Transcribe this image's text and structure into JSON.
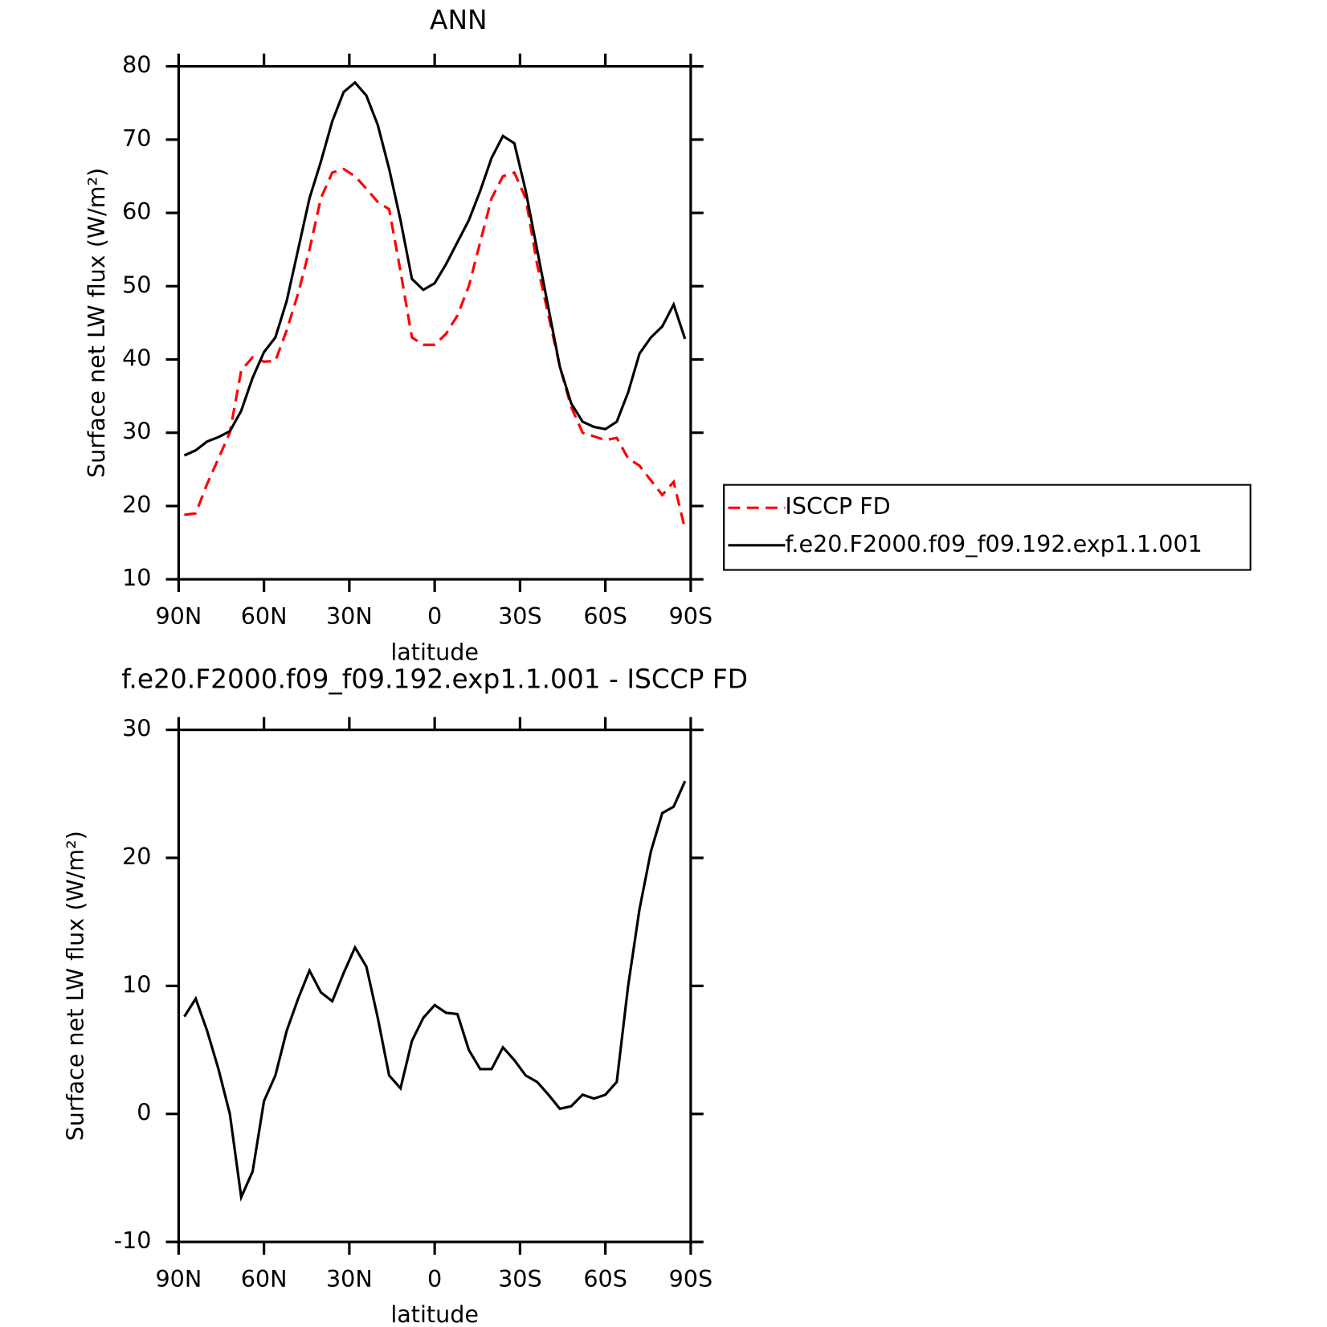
{
  "chart_data": [
    {
      "type": "line",
      "title": "ANN",
      "xlabel": "latitude",
      "ylabel": "Surface net LW flux (W/m²)",
      "x": [
        88,
        84,
        80,
        76,
        72,
        68,
        64,
        60,
        56,
        52,
        48,
        44,
        40,
        36,
        32,
        28,
        24,
        20,
        16,
        12,
        8,
        4,
        0,
        -4,
        -8,
        -12,
        -16,
        -20,
        -24,
        -28,
        -32,
        -36,
        -40,
        -44,
        -48,
        -52,
        -56,
        -60,
        -64,
        -68,
        -72,
        -76,
        -80,
        -84,
        -88
      ],
      "series": [
        {
          "name": "ISCCP FD",
          "color": "#ff0000",
          "style": "dashed",
          "values": [
            18.8,
            19,
            23,
            26.5,
            30,
            38.5,
            40.3,
            39.7,
            39.8,
            44,
            49,
            55,
            62,
            65.5,
            66,
            65,
            63.3,
            61.5,
            60.5,
            52,
            43,
            42,
            42,
            43.5,
            46,
            50,
            56,
            62,
            65,
            65.5,
            62,
            53,
            46,
            39,
            33.5,
            30,
            29.5,
            29,
            29.3,
            26.5,
            25.5,
            23.5,
            21.5,
            23.3,
            16.8
          ]
        },
        {
          "name": "f.e20.F2000.f09_f09.192.exp1.1.001",
          "color": "#000000",
          "style": "solid",
          "values": [
            26.9,
            27.6,
            28.8,
            29.4,
            30.2,
            33,
            37.5,
            41,
            43,
            48,
            55,
            62,
            67,
            72.5,
            76.5,
            77.8,
            76,
            72,
            66,
            59,
            51,
            49.5,
            50.4,
            53,
            56,
            59,
            63,
            67.5,
            70.5,
            69.5,
            63,
            55,
            47,
            39,
            34,
            31.5,
            30.8,
            30.5,
            31.5,
            35.5,
            40.8,
            43,
            44.5,
            47.5,
            42.8
          ]
        }
      ],
      "xlim": [
        90,
        -90
      ],
      "xticks": [
        {
          "value": 90,
          "label": "90N"
        },
        {
          "value": 60,
          "label": "60N"
        },
        {
          "value": 30,
          "label": "30N"
        },
        0,
        {
          "value": -30,
          "label": "30S"
        },
        {
          "value": -60,
          "label": "60S"
        },
        {
          "value": -90,
          "label": "90S"
        }
      ],
      "ylim": [
        10,
        80
      ],
      "yticks": [
        10,
        20,
        30,
        40,
        50,
        60,
        70,
        80
      ],
      "legend": "right"
    },
    {
      "type": "line",
      "title": "f.e20.F2000.f09_f09.192.exp1.1.001 - ISCCP FD",
      "xlabel": "latitude",
      "ylabel": "Surface net LW flux (W/m²)",
      "x": [
        88,
        84,
        80,
        76,
        72,
        68,
        64,
        60,
        56,
        52,
        48,
        44,
        40,
        36,
        32,
        28,
        24,
        20,
        16,
        12,
        8,
        4,
        0,
        -4,
        -8,
        -12,
        -16,
        -20,
        -24,
        -28,
        -32,
        -36,
        -40,
        -44,
        -48,
        -52,
        -56,
        -60,
        -64,
        -68,
        -72,
        -76,
        -80,
        -84,
        -88
      ],
      "series": [
        {
          "color": "#000000",
          "style": "solid",
          "values": [
            7.6,
            9,
            6.5,
            3.5,
            0,
            -6.5,
            -4.5,
            1,
            3,
            6.5,
            9,
            11.2,
            9.5,
            8.8,
            11,
            13,
            11.5,
            7.5,
            3,
            2,
            5.7,
            7.5,
            8.5,
            7.9,
            7.8,
            5,
            3.5,
            3.5,
            5.2,
            4.2,
            3,
            2.5,
            1.5,
            0.4,
            0.6,
            1.5,
            1.2,
            1.5,
            2.5,
            10,
            16,
            20.5,
            23.5,
            24,
            26
          ]
        }
      ],
      "xlim": [
        90,
        -90
      ],
      "xticks": [
        {
          "value": 90,
          "label": "90N"
        },
        {
          "value": 60,
          "label": "60N"
        },
        {
          "value": 30,
          "label": "30N"
        },
        0,
        {
          "value": -30,
          "label": "30S"
        },
        {
          "value": -60,
          "label": "60S"
        },
        {
          "value": -90,
          "label": "90S"
        }
      ],
      "ylim": [
        -10,
        30
      ],
      "yticks": [
        -10,
        0,
        10,
        20,
        30
      ]
    }
  ]
}
